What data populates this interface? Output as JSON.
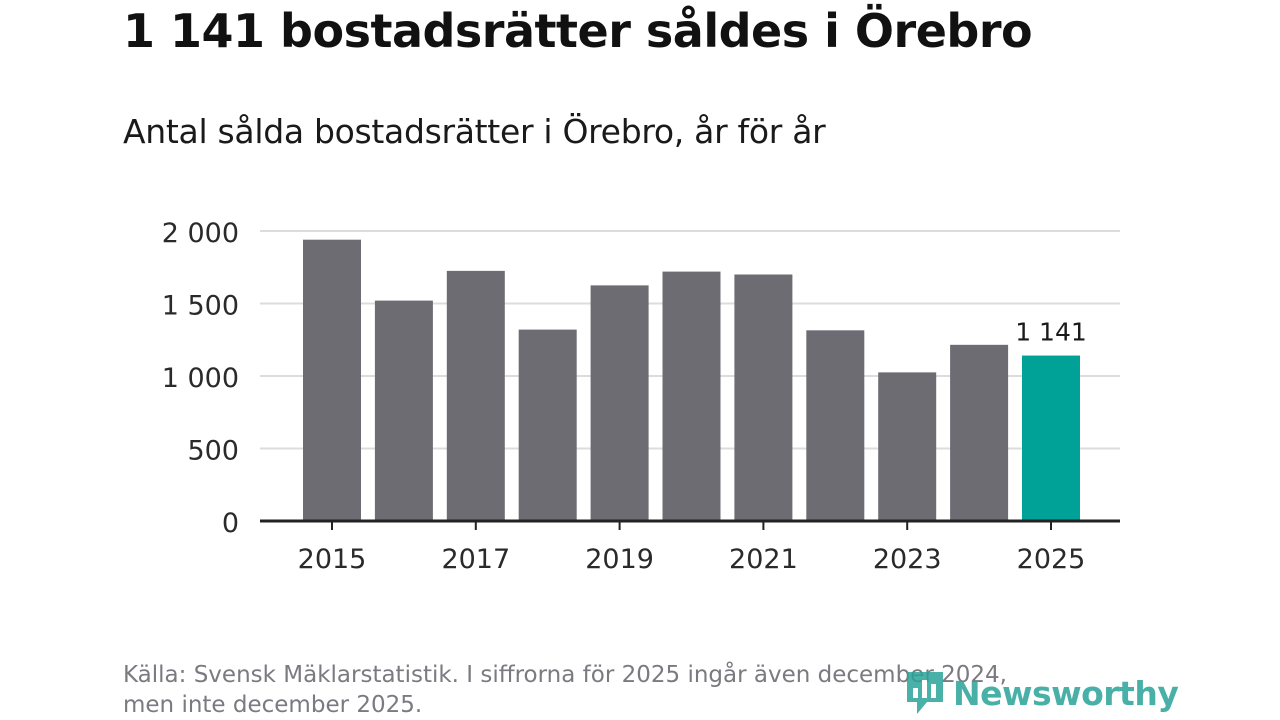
{
  "title": "1 141 bostadsrätter såldes i Örebro",
  "subtitle": "Antal sålda bostadsrätter i Örebro, år för år",
  "footnote": {
    "line1": "Källa: Svensk Mäklarstatistik. I siffrorna för 2025 ingår även december 2024,",
    "line2": "men inte december 2025."
  },
  "brand": {
    "name": "Newsworthy",
    "icon": "newsworthy-logo-icon"
  },
  "colors": {
    "bar": "#6d6c73",
    "highlight": "#00a196",
    "grid": "#dcdcdc",
    "axis": "#222222",
    "brand": "#2aa39a"
  },
  "chart_data": {
    "type": "bar",
    "categories": [
      "2015",
      "2016",
      "2017",
      "2018",
      "2019",
      "2020",
      "2021",
      "2022",
      "2023",
      "2024",
      "2025"
    ],
    "values": [
      1940,
      1520,
      1725,
      1320,
      1625,
      1720,
      1700,
      1315,
      1025,
      1215,
      1141
    ],
    "highlight_index": 10,
    "highlight_label": "1 141",
    "ylim": [
      0,
      2000
    ],
    "yticks": [
      0,
      500,
      1000,
      1500,
      2000
    ],
    "ytick_labels": [
      "0",
      "500",
      "1 000",
      "1 500",
      "2 000"
    ],
    "xtick_labels": [
      "2015",
      "2017",
      "2019",
      "2021",
      "2023",
      "2025"
    ],
    "grid": true,
    "xlabel": "",
    "ylabel": ""
  }
}
